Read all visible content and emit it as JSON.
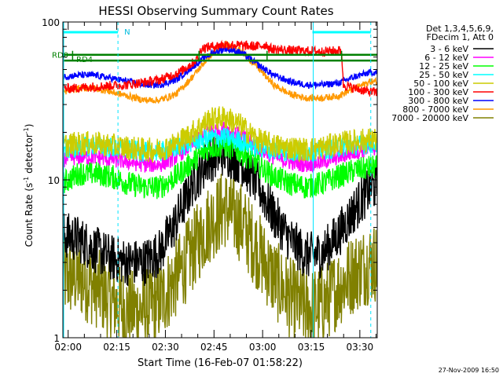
{
  "chart_data": {
    "type": "line",
    "title": "HESSI Observing Summary Count Rates",
    "xlabel": "Start Time (16-Feb-07 01:58:22)",
    "ylabel_main": "Count Rate (s",
    "ylabel_sup1": "-1",
    "ylabel_mid": " detector",
    "ylabel_sup2": "-1",
    "ylabel_end": ")",
    "y_scale": "log",
    "ylim": [
      1,
      100
    ],
    "xlim_minutes": [
      0,
      97
    ],
    "x_ticks": [
      {
        "t": 1.63,
        "label": "02:00"
      },
      {
        "t": 16.63,
        "label": "02:15"
      },
      {
        "t": 31.63,
        "label": "02:30"
      },
      {
        "t": 46.63,
        "label": "02:45"
      },
      {
        "t": 61.63,
        "label": "03:00"
      },
      {
        "t": 76.63,
        "label": "03:15"
      },
      {
        "t": 91.63,
        "label": "03:30"
      }
    ],
    "y_tick_labels": [
      {
        "v": 1,
        "label": "1"
      },
      {
        "v": 10,
        "label": "10"
      },
      {
        "v": 100,
        "label": "100"
      }
    ],
    "legend_header": [
      "Det 1,3,4,5,6,9,",
      "FDecim 1, Att 0"
    ],
    "legend_position": "right",
    "annotations": {
      "n_label": "N",
      "rd0_label": "RD0",
      "rd4_label": "RD4"
    },
    "n_bars": [
      [
        0,
        17
      ],
      [
        77,
        95
      ]
    ],
    "rd0_level": 62,
    "rd4_level": 57,
    "rd_segments": [
      [
        0,
        97
      ]
    ],
    "rd0_tick_minutes": [
      3,
      42,
      63,
      86
    ],
    "solid_cyan_lines": [
      0,
      77
    ],
    "dashed_cyan_lines": [
      17,
      95
    ],
    "series": [
      {
        "name": "3 - 6 keV",
        "color": "#000000",
        "noise": 0.35,
        "x": [
          0,
          5,
          10,
          15,
          20,
          25,
          30,
          35,
          40,
          45,
          50,
          55,
          60,
          65,
          70,
          75,
          80,
          85,
          90,
          95
        ],
        "y": [
          4.5,
          4.2,
          3.6,
          3.2,
          3.0,
          3.0,
          3.5,
          5.5,
          9.5,
          13.5,
          15,
          13,
          9.5,
          6,
          4.2,
          3.3,
          3.4,
          4.5,
          6.5,
          9
        ]
      },
      {
        "name": "6 - 12 keV",
        "color": "#ff00ff",
        "noise": 0.12,
        "x": [
          0,
          5,
          10,
          15,
          20,
          25,
          30,
          35,
          40,
          45,
          50,
          55,
          60,
          65,
          70,
          75,
          80,
          85,
          90,
          95
        ],
        "y": [
          13.5,
          14,
          14,
          13.5,
          13,
          12.5,
          12.5,
          14,
          17,
          20.5,
          21,
          19,
          16,
          14,
          13,
          12.5,
          13,
          14,
          15,
          16
        ]
      },
      {
        "name": "12 - 25 keV",
        "color": "#00ff00",
        "noise": 0.18,
        "x": [
          0,
          5,
          10,
          15,
          20,
          25,
          30,
          35,
          40,
          45,
          50,
          55,
          60,
          65,
          70,
          75,
          80,
          85,
          90,
          95
        ],
        "y": [
          9.5,
          11,
          11,
          10.5,
          9.5,
          9,
          9,
          10.5,
          13,
          16,
          16.5,
          15,
          12.5,
          10.5,
          9.5,
          9,
          9.5,
          10.5,
          11.5,
          12
        ]
      },
      {
        "name": "25 - 50 keV",
        "color": "#00ffff",
        "noise": 0.15,
        "x": [
          0,
          5,
          10,
          15,
          20,
          25,
          30,
          35,
          40,
          45,
          50,
          55,
          60,
          65,
          70,
          75,
          80,
          85,
          90,
          95
        ],
        "y": [
          15.5,
          16,
          16.5,
          16,
          15.5,
          15,
          15,
          16,
          17.5,
          18.5,
          18.5,
          17.5,
          16,
          15.5,
          15,
          15,
          15.5,
          16,
          16.5,
          17
        ]
      },
      {
        "name": "50 - 100 keV",
        "color": "#cccc00",
        "noise": 0.18,
        "x": [
          0,
          5,
          10,
          15,
          20,
          25,
          30,
          35,
          40,
          45,
          50,
          55,
          60,
          65,
          70,
          75,
          80,
          85,
          90,
          95
        ],
        "y": [
          16.5,
          17,
          17,
          16.5,
          16,
          15.5,
          15.5,
          17,
          20,
          24,
          25,
          22,
          18,
          16.5,
          16,
          15.5,
          16,
          17,
          17.5,
          18
        ]
      },
      {
        "name": "100 - 300 keV",
        "color": "#ff0000",
        "noise": 0.07,
        "x": [
          0,
          3,
          10,
          20,
          30,
          36,
          40,
          42,
          42.5,
          50,
          60,
          63,
          63.5,
          70,
          80,
          86,
          86.5,
          90,
          95
        ],
        "y": [
          38,
          38,
          39,
          40,
          43,
          48,
          55,
          60,
          68,
          72,
          70,
          72,
          68,
          66,
          65,
          66,
          40,
          38,
          36
        ]
      },
      {
        "name": "300 - 800 keV",
        "color": "#0000ff",
        "noise": 0.05,
        "x": [
          0,
          5,
          10,
          15,
          20,
          25,
          30,
          35,
          40,
          45,
          50,
          55,
          60,
          65,
          70,
          75,
          80,
          85,
          90,
          95
        ],
        "y": [
          45,
          46,
          46,
          44,
          42,
          40,
          40,
          43,
          52,
          62,
          68,
          64,
          54,
          46,
          42,
          40,
          40,
          41,
          45,
          48
        ]
      },
      {
        "name": "800 - 7000 keV",
        "color": "#ff9900",
        "noise": 0.05,
        "x": [
          0,
          5,
          10,
          15,
          20,
          25,
          30,
          35,
          40,
          45,
          50,
          55,
          60,
          65,
          70,
          75,
          80,
          85,
          90,
          95
        ],
        "y": [
          36,
          38,
          38,
          36,
          34,
          32,
          32,
          35,
          45,
          60,
          72,
          66,
          52,
          40,
          35,
          33,
          33,
          34,
          38,
          42
        ]
      },
      {
        "name": "7000 - 20000 keV",
        "color": "#808000",
        "noise": 0.6,
        "x": [
          0,
          5,
          10,
          15,
          20,
          25,
          30,
          35,
          40,
          45,
          50,
          55,
          60,
          65,
          70,
          75,
          80,
          85,
          90,
          95
        ],
        "y": [
          2.4,
          2.4,
          2.1,
          1.7,
          1.5,
          1.5,
          1.7,
          2.4,
          3.5,
          5.3,
          6.6,
          5.4,
          3.6,
          2.4,
          1.8,
          1.5,
          1.6,
          2.1,
          2.6,
          3.0
        ]
      }
    ]
  },
  "footer": {
    "timestamp": "27-Nov-2009 16:50"
  }
}
